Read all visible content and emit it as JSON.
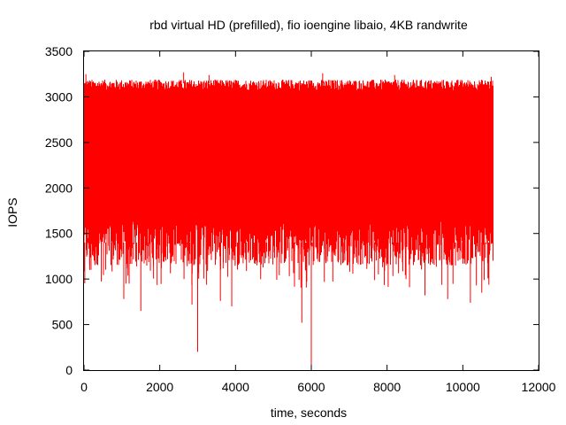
{
  "chart_data": {
    "type": "line",
    "title": "rbd virtual HD (prefilled), fio ioengine libaio, 4KB randwrite",
    "xlabel": "time, seconds",
    "ylabel": "IOPS",
    "xlim": [
      0,
      12000
    ],
    "ylim": [
      0,
      3500
    ],
    "x_ticks": [
      0,
      2000,
      4000,
      6000,
      8000,
      10000,
      12000
    ],
    "y_ticks": [
      0,
      500,
      1000,
      1500,
      2000,
      2500,
      3000,
      3500
    ],
    "x_tick_labels": [
      "0",
      "2000",
      "4000",
      "6000",
      "8000",
      "10000",
      "12000"
    ],
    "y_tick_labels": [
      "0",
      "500",
      "1000",
      "1500",
      "2000",
      "2500",
      "3000",
      "3500"
    ],
    "grid": false,
    "series": [
      {
        "color": "#ff0000",
        "x_range": [
          0,
          10800
        ],
        "typical_high": 3150,
        "typical_low": 1400,
        "spikes": [
          {
            "x": 50,
            "y": 3250
          },
          {
            "x": 100,
            "y": 1450
          },
          {
            "x": 150,
            "y": 1100
          },
          {
            "x": 1050,
            "y": 780
          },
          {
            "x": 1500,
            "y": 650
          },
          {
            "x": 2600,
            "y": 2030
          },
          {
            "x": 2630,
            "y": 3270
          },
          {
            "x": 2850,
            "y": 720
          },
          {
            "x": 3000,
            "y": 200
          },
          {
            "x": 3300,
            "y": 3240
          },
          {
            "x": 3600,
            "y": 760
          },
          {
            "x": 3900,
            "y": 700
          },
          {
            "x": 5750,
            "y": 520
          },
          {
            "x": 6000,
            "y": 0
          },
          {
            "x": 6300,
            "y": 3260
          },
          {
            "x": 7500,
            "y": 1950
          },
          {
            "x": 8200,
            "y": 3240
          },
          {
            "x": 8500,
            "y": 1000
          },
          {
            "x": 9000,
            "y": 820
          },
          {
            "x": 9600,
            "y": 780
          },
          {
            "x": 10200,
            "y": 740
          },
          {
            "x": 10500,
            "y": 850
          },
          {
            "x": 10750,
            "y": 3220
          }
        ]
      }
    ]
  }
}
